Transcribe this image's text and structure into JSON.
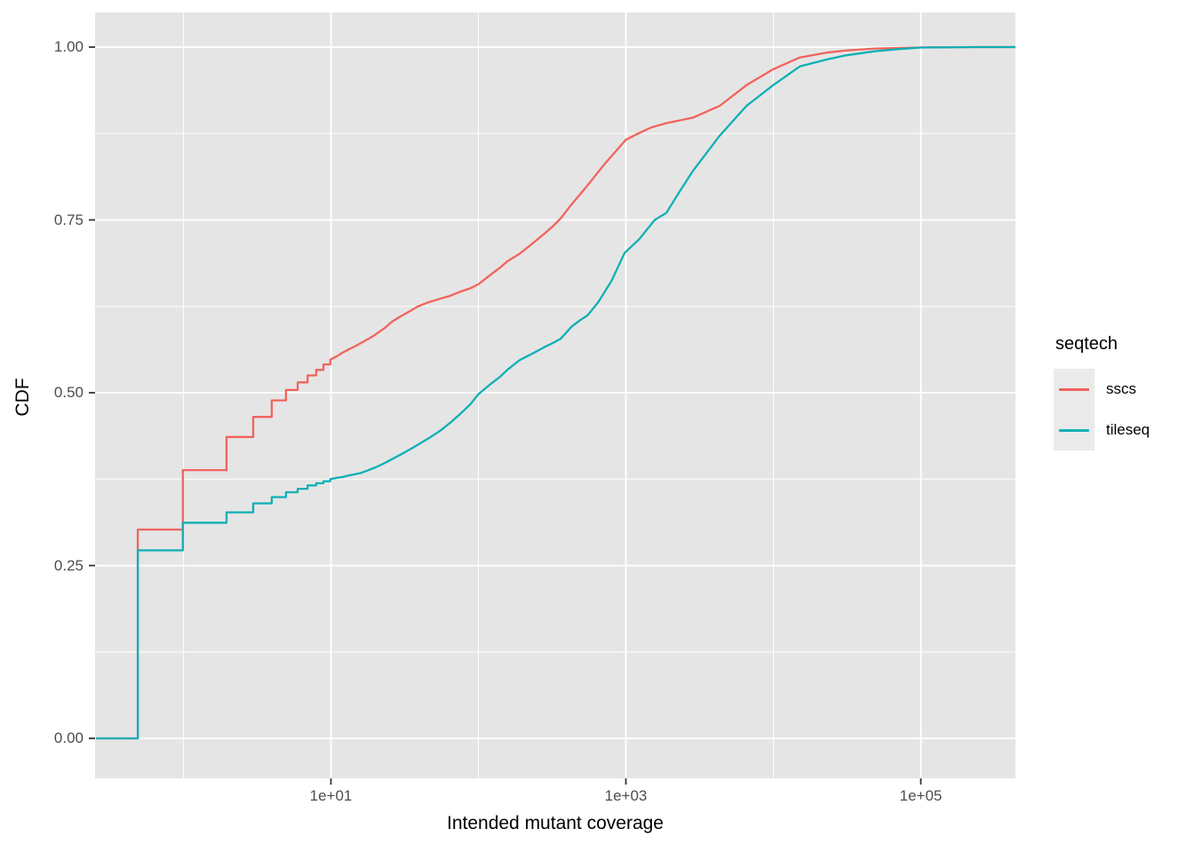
{
  "colors": {
    "figure_background": "#FFFFFF",
    "panel_background": "#E5E5E5",
    "grid": "#FFFFFF",
    "tick_mark": "#333333",
    "tick_label": "#4D4D4D",
    "sscs": "#F2635C",
    "tileseq": "#0FB0B5"
  },
  "chart_data": {
    "type": "line",
    "subtype": "ecdf-step",
    "title": "",
    "xlabel": "Intended mutant coverage",
    "ylabel": "CDF",
    "x_scale": "log10",
    "xlim": [
      0.255,
      440000
    ],
    "ylim": [
      -0.056,
      1.056
    ],
    "grid": true,
    "x_ticks": [
      {
        "value": 10,
        "label": "1e+01"
      },
      {
        "value": 1000,
        "label": "1e+03"
      },
      {
        "value": 100000,
        "label": "1e+05"
      }
    ],
    "x_minor_breaks": [
      1,
      100,
      10000
    ],
    "y_ticks": [
      {
        "value": 0.0,
        "label": "0.00"
      },
      {
        "value": 0.25,
        "label": "0.25"
      },
      {
        "value": 0.5,
        "label": "0.50"
      },
      {
        "value": 0.75,
        "label": "0.75"
      },
      {
        "value": 1.0,
        "label": "1.00"
      }
    ],
    "y_minor_breaks": [
      0.125,
      0.375,
      0.625,
      0.875
    ],
    "legend": {
      "title": "seqtech",
      "position": "right",
      "entries": [
        {
          "label": "sscs",
          "color": "#F2635C"
        },
        {
          "label": "tileseq",
          "color": "#0FB0B5"
        }
      ]
    },
    "series": [
      {
        "name": "sscs",
        "color": "#F2635C",
        "points": [
          [
            0.255,
            0
          ],
          [
            0.49,
            0
          ],
          [
            0.49,
            0.302
          ],
          [
            0.99,
            0.302
          ],
          [
            0.99,
            0.388
          ],
          [
            1.96,
            0.388
          ],
          [
            1.96,
            0.436
          ],
          [
            2.97,
            0.436
          ],
          [
            2.97,
            0.465
          ],
          [
            3.97,
            0.465
          ],
          [
            3.97,
            0.489
          ],
          [
            4.96,
            0.489
          ],
          [
            4.96,
            0.504
          ],
          [
            5.95,
            0.504
          ],
          [
            5.95,
            0.515
          ],
          [
            6.94,
            0.515
          ],
          [
            6.94,
            0.525
          ],
          [
            7.94,
            0.525
          ],
          [
            7.94,
            0.533
          ],
          [
            8.9,
            0.533
          ],
          [
            8.9,
            0.541
          ],
          [
            9.9,
            0.541
          ],
          [
            9.9,
            0.548
          ],
          [
            11,
            0.553
          ],
          [
            12,
            0.558
          ],
          [
            13,
            0.562
          ],
          [
            14.5,
            0.567
          ],
          [
            16,
            0.572
          ],
          [
            18,
            0.578
          ],
          [
            20,
            0.584
          ],
          [
            23,
            0.593
          ],
          [
            26,
            0.603
          ],
          [
            30,
            0.611
          ],
          [
            35,
            0.619
          ],
          [
            39,
            0.625
          ],
          [
            46,
            0.631
          ],
          [
            55,
            0.636
          ],
          [
            64,
            0.64
          ],
          [
            75,
            0.646
          ],
          [
            88,
            0.651
          ],
          [
            100,
            0.657
          ],
          [
            120,
            0.67
          ],
          [
            140,
            0.681
          ],
          [
            157,
            0.69
          ],
          [
            190,
            0.701
          ],
          [
            215,
            0.71
          ],
          [
            239,
            0.718
          ],
          [
            280,
            0.73
          ],
          [
            320,
            0.741
          ],
          [
            361,
            0.752
          ],
          [
            430,
            0.773
          ],
          [
            540,
            0.798
          ],
          [
            712,
            0.83
          ],
          [
            1000,
            0.866
          ],
          [
            1210,
            0.875
          ],
          [
            1500,
            0.884
          ],
          [
            1880,
            0.89
          ],
          [
            2850,
            0.898
          ],
          [
            4330,
            0.915
          ],
          [
            6580,
            0.945
          ],
          [
            9980,
            0.968
          ],
          [
            15100,
            0.985
          ],
          [
            23000,
            0.992
          ],
          [
            31000,
            0.995
          ],
          [
            48700,
            0.998
          ],
          [
            100000,
            0.9995
          ],
          [
            240000,
            1.0
          ],
          [
            440000,
            1.0
          ]
        ]
      },
      {
        "name": "tileseq",
        "color": "#0FB0B5",
        "points": [
          [
            0.255,
            0
          ],
          [
            0.49,
            0
          ],
          [
            0.49,
            0.272
          ],
          [
            0.99,
            0.272
          ],
          [
            0.99,
            0.312
          ],
          [
            1.96,
            0.312
          ],
          [
            1.96,
            0.327
          ],
          [
            2.97,
            0.327
          ],
          [
            2.97,
            0.34
          ],
          [
            3.97,
            0.34
          ],
          [
            3.97,
            0.349
          ],
          [
            4.96,
            0.349
          ],
          [
            4.96,
            0.356
          ],
          [
            5.95,
            0.356
          ],
          [
            5.95,
            0.361
          ],
          [
            6.94,
            0.361
          ],
          [
            6.94,
            0.366
          ],
          [
            7.94,
            0.366
          ],
          [
            7.94,
            0.369
          ],
          [
            8.9,
            0.369
          ],
          [
            8.9,
            0.372
          ],
          [
            9.9,
            0.372
          ],
          [
            9.9,
            0.375
          ],
          [
            11,
            0.377
          ],
          [
            12,
            0.378
          ],
          [
            13,
            0.38
          ],
          [
            14.5,
            0.382
          ],
          [
            16,
            0.384
          ],
          [
            18,
            0.388
          ],
          [
            20,
            0.392
          ],
          [
            23,
            0.398
          ],
          [
            26,
            0.404
          ],
          [
            30,
            0.411
          ],
          [
            35,
            0.419
          ],
          [
            39,
            0.425
          ],
          [
            46,
            0.434
          ],
          [
            55,
            0.445
          ],
          [
            64,
            0.456
          ],
          [
            75,
            0.469
          ],
          [
            88,
            0.483
          ],
          [
            100,
            0.498
          ],
          [
            120,
            0.512
          ],
          [
            140,
            0.523
          ],
          [
            157,
            0.533
          ],
          [
            190,
            0.547
          ],
          [
            215,
            0.553
          ],
          [
            239,
            0.558
          ],
          [
            280,
            0.566
          ],
          [
            320,
            0.572
          ],
          [
            361,
            0.578
          ],
          [
            430,
            0.596
          ],
          [
            490,
            0.605
          ],
          [
            550,
            0.612
          ],
          [
            650,
            0.631
          ],
          [
            800,
            0.662
          ],
          [
            980,
            0.702
          ],
          [
            1230,
            0.722
          ],
          [
            1570,
            0.75
          ],
          [
            1880,
            0.76
          ],
          [
            2300,
            0.79
          ],
          [
            2850,
            0.821
          ],
          [
            4330,
            0.872
          ],
          [
            6580,
            0.915
          ],
          [
            9980,
            0.945
          ],
          [
            15100,
            0.972
          ],
          [
            23000,
            0.982
          ],
          [
            31000,
            0.988
          ],
          [
            48700,
            0.994
          ],
          [
            70000,
            0.997
          ],
          [
            100000,
            0.9993
          ],
          [
            240000,
            1.0
          ],
          [
            440000,
            1.0
          ]
        ]
      }
    ]
  }
}
